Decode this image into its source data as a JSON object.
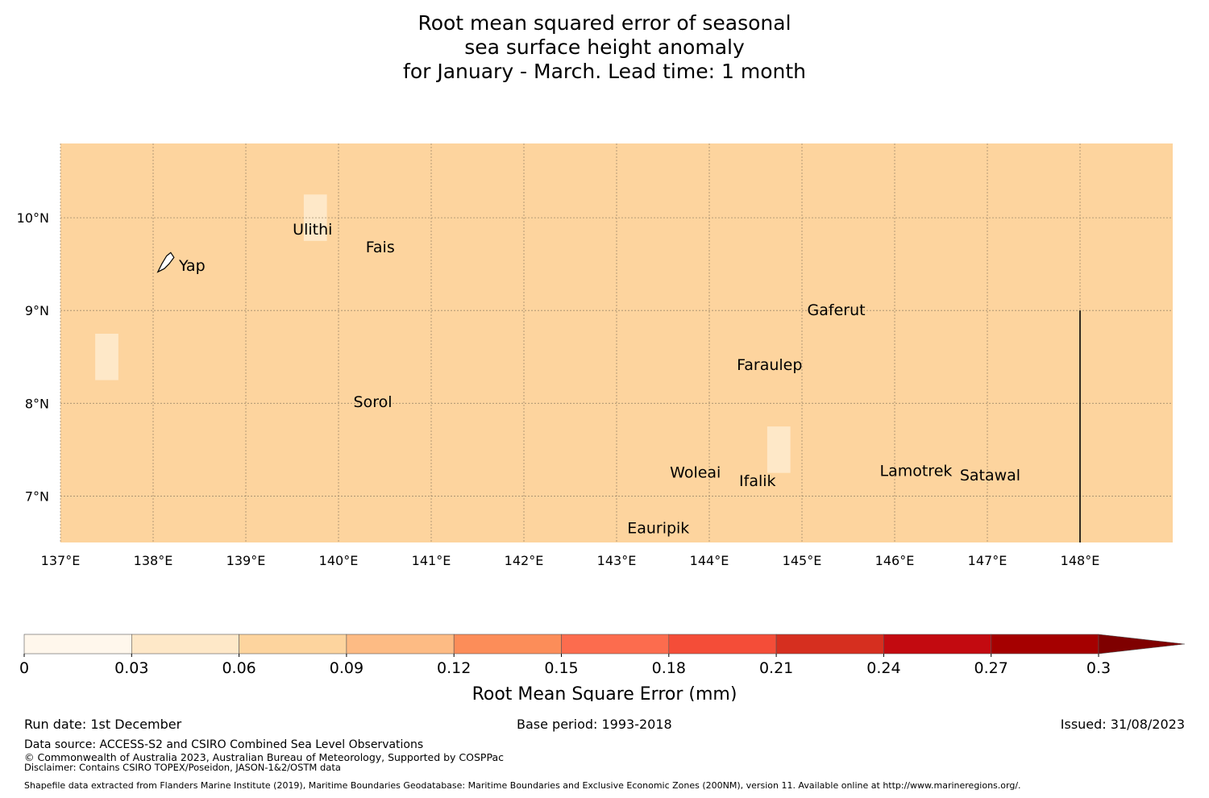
{
  "title": {
    "line1": "Root mean squared error of seasonal",
    "line2": "sea surface height anomaly",
    "line3": "for January - March. Lead time: 1 month"
  },
  "map": {
    "lon_range": [
      137,
      149
    ],
    "lat_range": [
      6.5,
      10.8
    ],
    "lon_ticks": [
      "137°E",
      "138°E",
      "139°E",
      "140°E",
      "141°E",
      "142°E",
      "143°E",
      "144°E",
      "145°E",
      "146°E",
      "147°E",
      "148°E"
    ],
    "lat_ticks": [
      "10°N",
      "9°N",
      "8°N",
      "7°N"
    ],
    "lat_tick_values": [
      10,
      9,
      8,
      7
    ],
    "lon_tick_values": [
      137,
      138,
      139,
      140,
      141,
      142,
      143,
      144,
      145,
      146,
      147,
      148
    ],
    "base_color": "#fdd49e",
    "boundary_line_lon": 148,
    "rmse_cells": [
      {
        "lon": [
          137.375,
          137.625
        ],
        "lat": [
          8.25,
          8.75
        ],
        "value": 0.045
      },
      {
        "lon": [
          139.625,
          139.875
        ],
        "lat": [
          9.75,
          10.25
        ],
        "value": 0.045
      },
      {
        "lon": [
          144.625,
          144.875
        ],
        "lat": [
          7.25,
          7.75
        ],
        "value": 0.045
      },
      {
        "lon": [
          140.875,
          142.375
        ],
        "lat": [
          8.75,
          9.0
        ],
        "value": 0.075
      },
      {
        "lon": [
          140.625,
          142.125
        ],
        "lat": [
          8.5,
          8.75
        ],
        "value": 0.075
      },
      {
        "lon": [
          140.375,
          141.625
        ],
        "lat": [
          8.25,
          8.5
        ],
        "value": 0.075
      },
      {
        "lon": [
          145.875,
          146.375
        ],
        "lat": [
          9.5,
          9.75
        ],
        "value": 0.075
      },
      {
        "lon": [
          145.125,
          146.875
        ],
        "lat": [
          9.25,
          9.5
        ],
        "value": 0.075
      },
      {
        "lon": [
          145.125,
          147.125
        ],
        "lat": [
          9.0,
          9.25
        ],
        "value": 0.075
      },
      {
        "lon": [
          145.375,
          147.125
        ],
        "lat": [
          8.75,
          9.0
        ],
        "value": 0.075
      },
      {
        "lon": [
          145.625,
          146.875
        ],
        "lat": [
          8.5,
          8.75
        ],
        "value": 0.075
      },
      {
        "lon": [
          145.875,
          146.625
        ],
        "lat": [
          8.25,
          8.5
        ],
        "value": 0.075
      }
    ],
    "places": [
      {
        "name": "Ulithi",
        "lon": 139.72,
        "lat": 9.87
      },
      {
        "name": "Fais",
        "lon": 140.45,
        "lat": 9.68
      },
      {
        "name": "Yap",
        "lon": 138.42,
        "lat": 9.48
      },
      {
        "name": "Gaferut",
        "lon": 145.37,
        "lat": 9.0
      },
      {
        "name": "Faraulep",
        "lon": 144.65,
        "lat": 8.41
      },
      {
        "name": "Sorol",
        "lon": 140.37,
        "lat": 8.01
      },
      {
        "name": "Woleai",
        "lon": 143.85,
        "lat": 7.25
      },
      {
        "name": "Ifalik",
        "lon": 144.52,
        "lat": 7.16
      },
      {
        "name": "Lamotrek",
        "lon": 146.23,
        "lat": 7.27
      },
      {
        "name": "Satawal",
        "lon": 147.03,
        "lat": 7.22
      },
      {
        "name": "Eauripik",
        "lon": 143.45,
        "lat": 6.65
      }
    ]
  },
  "colorbar": {
    "label": "Root Mean Square Error (mm)",
    "ticks": [
      "0",
      "0.03",
      "0.06",
      "0.09",
      "0.12",
      "0.15",
      "0.18",
      "0.21",
      "0.24",
      "0.27",
      "0.3"
    ],
    "colors": [
      "#fff7ec",
      "#fee8c8",
      "#fdd49e",
      "#fdbb84",
      "#fc8d59",
      "#fc6c4e",
      "#f44d38",
      "#d62f1f",
      "#c30a10",
      "#a50000"
    ],
    "extend_color": "#7f0000"
  },
  "footer": {
    "run_date": "Run date: 1st December",
    "base_period": "Base period: 1993-2018",
    "issued": "Issued: 31/08/2023",
    "data_source": "Data source: ACCESS-S2 and CSIRO Combined Sea Level Observations",
    "copyright": "© Commonwealth of Australia 2023, Australian Bureau of Meteorology, Supported by COSPPac",
    "disclaimer": "Disclaimer: Contains CSIRO TOPEX/Poseidon, JASON-1&2/OSTM data",
    "shapefile": "Shapefile data extracted from Flanders Marine Institute (2019), Maritime Boundaries Geodatabase: Maritime Boundaries and Exclusive Economic Zones (200NM), version 11. Available online at http://www.marineregions.org/."
  }
}
